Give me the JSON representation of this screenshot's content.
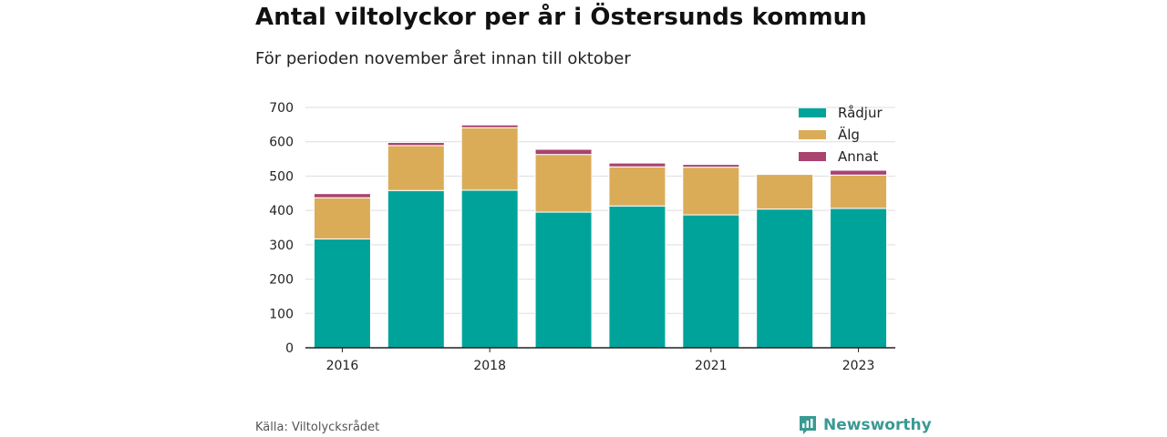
{
  "title": "Antal viltolyckor per år i Östersunds kommun",
  "subtitle": "För perioden november året innan till oktober",
  "source": "Källa: Viltolycksrådet",
  "brand": "Newsworthy",
  "colors": {
    "Rådjur": "#00a39a",
    "Älg": "#dbac58",
    "Annat": "#a94370",
    "axis": "#222222",
    "grid": "#dddddd"
  },
  "chart_data": {
    "type": "bar",
    "stacked": true,
    "categories": [
      "2016",
      "2017",
      "2018",
      "2019",
      "2020",
      "2021",
      "2022",
      "2023"
    ],
    "x_tick_labels": [
      "2016",
      "",
      "2018",
      "",
      "",
      "2021",
      "",
      "2023"
    ],
    "series": [
      {
        "name": "Rådjur",
        "values": [
          317,
          458,
          459,
          395,
          413,
          387,
          404,
          406
        ]
      },
      {
        "name": "Älg",
        "values": [
          120,
          131,
          182,
          168,
          114,
          139,
          101,
          97
        ]
      },
      {
        "name": "Annat",
        "values": [
          12,
          9,
          8,
          15,
          11,
          8,
          1,
          14
        ]
      }
    ],
    "ylim": [
      0,
      700
    ],
    "yticks": [
      0,
      100,
      200,
      300,
      400,
      500,
      600,
      700
    ],
    "grid": true,
    "legend": "top-right"
  }
}
